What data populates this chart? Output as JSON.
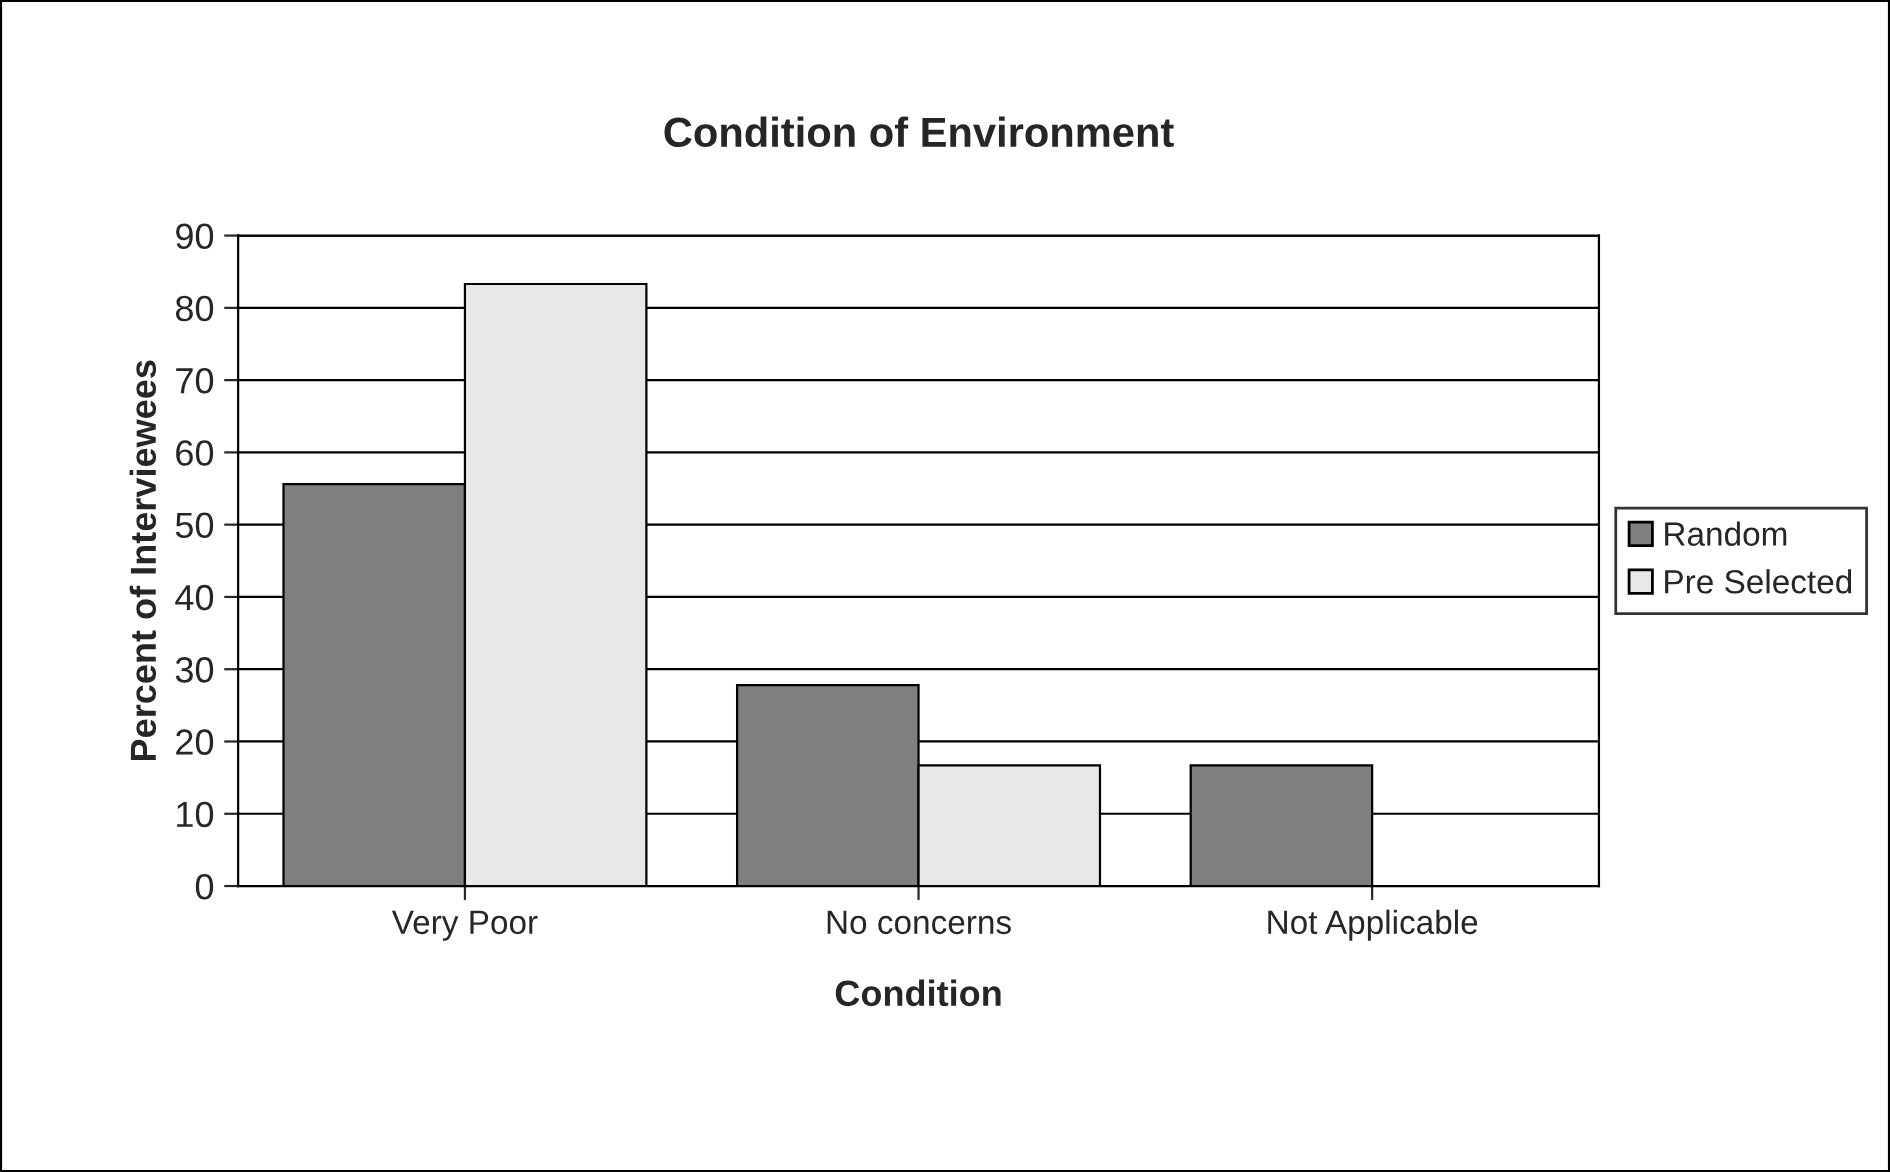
{
  "chart_data": {
    "type": "bar",
    "title": "Condition of Environment",
    "xlabel": "Condition",
    "ylabel": "Percent of Interviewees",
    "categories": [
      "Very Poor",
      "No concerns",
      "Not Applicable"
    ],
    "series": [
      {
        "name": "Random",
        "color": "#7f7f7f",
        "values": [
          55.6,
          27.8,
          16.7
        ]
      },
      {
        "name": "Pre Selected",
        "color": "#e8e8e8",
        "values": [
          83.3,
          16.7,
          null
        ]
      }
    ],
    "ylim": [
      0,
      90
    ],
    "yticks": [
      0,
      10,
      20,
      30,
      40,
      50,
      60,
      70,
      80,
      90
    ],
    "grid": "y",
    "legend": "right"
  }
}
